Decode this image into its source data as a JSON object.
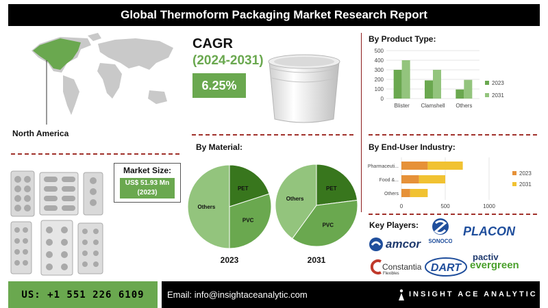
{
  "title": "Global Thermoform Packaging Market Research Report",
  "region": "North America",
  "market_size": {
    "label": "Market Size:",
    "value_line1": "US$ 51.93 Mn",
    "value_line2": "(2023)"
  },
  "cagr": {
    "label": "CAGR",
    "years": "(2024-2031)",
    "value": "6.25%"
  },
  "sections": {
    "product_type": "By Product Type:",
    "material": "By Material:",
    "end_user": "By End-User Industry:",
    "key_players": "Key Players:"
  },
  "colors": {
    "green": "#6aa84f",
    "dark_green": "#38761d",
    "light_green": "#93c47d",
    "orange": "#e69138",
    "yellow": "#f1c232"
  },
  "chart_data": [
    {
      "type": "bar",
      "title": "By Product Type:",
      "categories": [
        "Blister",
        "Clamshell",
        "Others"
      ],
      "series": [
        {
          "name": "2023",
          "values": [
            300,
            190,
            95
          ],
          "color": "#6aa84f"
        },
        {
          "name": "2031",
          "values": [
            400,
            300,
            195
          ],
          "color": "#93c47d"
        }
      ],
      "ylim": [
        0,
        500
      ],
      "yticks": [
        "0",
        "100",
        "200",
        "300",
        "400",
        "500"
      ],
      "legend": "right"
    },
    {
      "type": "pie",
      "title": "By Material:",
      "pies": [
        {
          "label": "2023",
          "slices": [
            {
              "name": "PET",
              "value": 20,
              "color": "#38761d"
            },
            {
              "name": "PVC",
              "value": 30,
              "color": "#6aa84f"
            },
            {
              "name": "Others",
              "value": 50,
              "color": "#93c47d"
            }
          ]
        },
        {
          "label": "2031",
          "slices": [
            {
              "name": "PET",
              "value": 23,
              "color": "#38761d"
            },
            {
              "name": "PVC",
              "value": 37,
              "color": "#6aa84f"
            },
            {
              "name": "Others",
              "value": 40,
              "color": "#93c47d"
            }
          ]
        }
      ]
    },
    {
      "type": "bar",
      "orientation": "horizontal",
      "stacked": true,
      "title": "By End-User Industry:",
      "categories": [
        "Pharmaceuti...",
        "Food &...",
        "Others"
      ],
      "series": [
        {
          "name": "2023",
          "values": [
            300,
            200,
            100
          ],
          "color": "#e69138"
        },
        {
          "name": "2031",
          "values": [
            400,
            300,
            200
          ],
          "color": "#f1c232"
        }
      ],
      "xlim": [
        0,
        1000
      ],
      "xticks": [
        "0",
        "500",
        "1000"
      ],
      "legend": "right"
    }
  ],
  "key_players": [
    "SONOCO",
    "PLACON",
    "amcor",
    "Constantia",
    "Flexibles",
    "DART",
    "pactiv",
    "evergreen"
  ],
  "footer": {
    "phone": "US: +1 551 226 6109",
    "email": "Email: info@insightaceanalytic.com",
    "brand": "INSIGHT ACE ANALYTIC"
  }
}
